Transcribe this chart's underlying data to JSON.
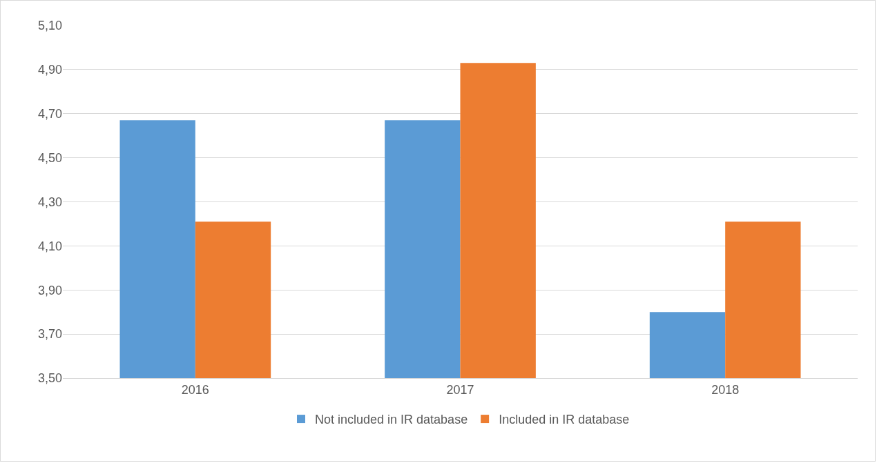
{
  "chart_data": {
    "type": "bar",
    "categories": [
      "2016",
      "2017",
      "2018"
    ],
    "series": [
      {
        "name": "Not included in IR database",
        "color": "#5b9bd5",
        "values": [
          4.67,
          4.67,
          3.8
        ]
      },
      {
        "name": "Included in IR database",
        "color": "#ed7d31",
        "values": [
          4.21,
          4.93,
          4.21
        ]
      }
    ],
    "ylim": [
      3.5,
      5.1
    ],
    "yticks": [
      {
        "value": 3.5,
        "label": "3,50"
      },
      {
        "value": 3.7,
        "label": "3,70"
      },
      {
        "value": 3.9,
        "label": "3,90"
      },
      {
        "value": 4.1,
        "label": "4,10"
      },
      {
        "value": 4.3,
        "label": "4,30"
      },
      {
        "value": 4.5,
        "label": "4,50"
      },
      {
        "value": 4.7,
        "label": "4,70"
      },
      {
        "value": 4.9,
        "label": "4,90"
      },
      {
        "value": 5.1,
        "label": "5,10"
      }
    ],
    "grid": "y",
    "legend": "bottom"
  }
}
